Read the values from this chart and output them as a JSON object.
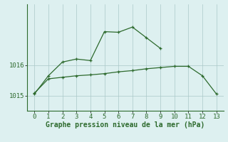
{
  "line1_x": [
    0,
    1,
    2,
    3,
    4,
    5,
    6,
    7,
    8,
    9
  ],
  "line1_y": [
    1015.05,
    1015.65,
    1016.1,
    1016.2,
    1016.15,
    1017.1,
    1017.08,
    1017.25,
    1016.9,
    1016.55
  ],
  "line2_x": [
    0,
    1,
    2,
    3,
    4,
    5,
    6,
    7,
    8,
    9,
    10,
    11,
    12,
    13
  ],
  "line2_y": [
    1015.08,
    1015.55,
    1015.6,
    1015.65,
    1015.68,
    1015.72,
    1015.78,
    1015.82,
    1015.88,
    1015.92,
    1015.96,
    1015.96,
    1015.65,
    1015.05
  ],
  "line_color": "#2d6a2d",
  "bg_color": "#ddf0f0",
  "grid_color": "#aac8c8",
  "xlabel": "Graphe pression niveau de la mer (hPa)",
  "xlim": [
    -0.5,
    13.5
  ],
  "ylim": [
    1014.5,
    1018.0
  ],
  "yticks": [
    1015,
    1016
  ],
  "xticks": [
    0,
    1,
    2,
    3,
    4,
    5,
    6,
    7,
    8,
    9,
    10,
    11,
    12,
    13
  ],
  "xlabel_fontsize": 7.0,
  "tick_fontsize": 6.5
}
